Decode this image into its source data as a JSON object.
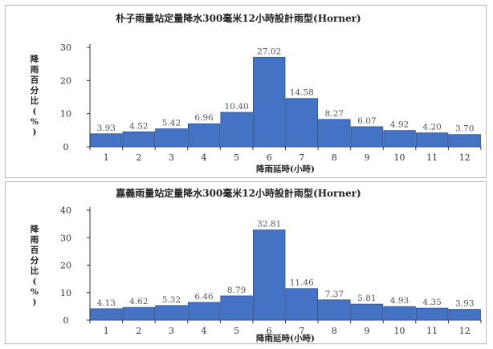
{
  "colors": {
    "bar_fill": "#4472c4",
    "bar_stroke": "#2f528f",
    "axis": "#333333"
  },
  "chart_data": [
    {
      "type": "bar",
      "title": "朴子雨量站定量降水300毫米12小時設計雨型(Horner)",
      "xlabel": "降雨延時(小時)",
      "ylabel": "降雨百分比(%)",
      "ylim": [
        0,
        30
      ],
      "yticks": [
        0,
        10,
        20,
        30
      ],
      "categories": [
        "1",
        "2",
        "3",
        "4",
        "5",
        "6",
        "7",
        "8",
        "9",
        "10",
        "11",
        "12"
      ],
      "values": [
        3.93,
        4.52,
        5.42,
        6.96,
        10.4,
        27.02,
        14.58,
        8.27,
        6.07,
        4.92,
        4.2,
        3.7
      ],
      "value_labels": [
        "3.93",
        "4.52",
        "5.42",
        "6.96",
        "10.40",
        "27.02",
        "14.58",
        "8.27",
        "6.07",
        "4.92",
        "4.20",
        "3.70"
      ],
      "grid": false,
      "legend": "none"
    },
    {
      "type": "bar",
      "title": "嘉義雨量站定量降水300毫米12小時設計雨型(Horner)",
      "xlabel": "降雨延時(小時)",
      "ylabel": "降雨百分比(%)",
      "ylim": [
        0,
        40
      ],
      "yticks": [
        0,
        10,
        20,
        30,
        40
      ],
      "categories": [
        "1",
        "2",
        "3",
        "4",
        "5",
        "6",
        "7",
        "8",
        "9",
        "10",
        "11",
        "12"
      ],
      "values": [
        4.13,
        4.62,
        5.32,
        6.46,
        8.79,
        32.81,
        11.46,
        7.37,
        5.81,
        4.93,
        4.35,
        3.93
      ],
      "value_labels": [
        "4.13",
        "4.62",
        "5.32",
        "6.46",
        "8.79",
        "32.81",
        "11.46",
        "7.37",
        "5.81",
        "4.93",
        "4.35",
        "3.93"
      ],
      "grid": false,
      "legend": "none"
    }
  ]
}
